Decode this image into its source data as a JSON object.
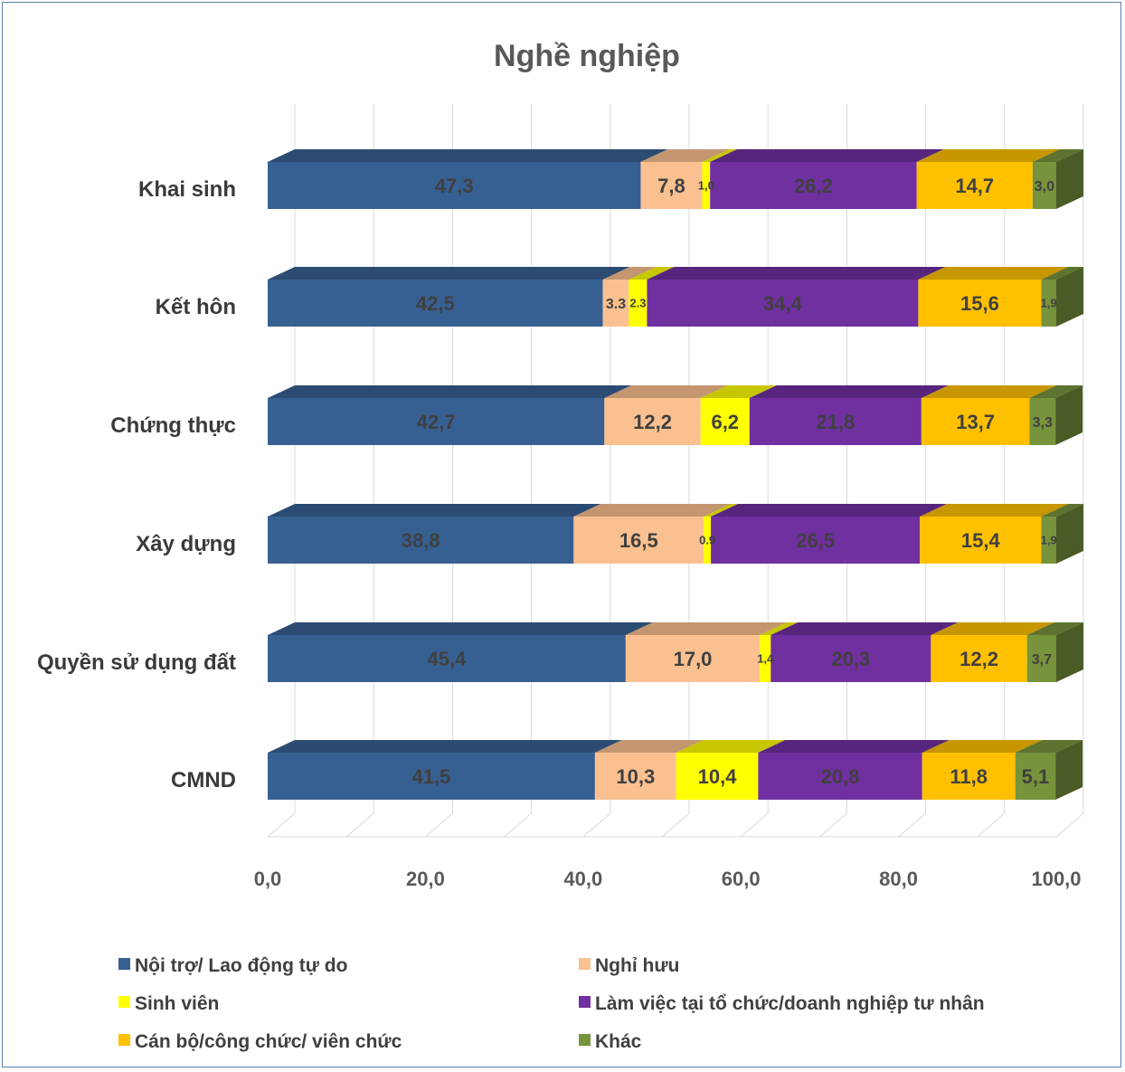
{
  "chart_data": {
    "type": "bar",
    "orientation": "horizontal",
    "stacked": true,
    "title": "Nghề nghiệp",
    "categories": [
      "Khai sinh",
      "Kết hôn",
      "Chứng thực",
      "Xây dựng",
      "Quyền sử dụng đất",
      "CMND"
    ],
    "series": [
      {
        "name": "Nội trợ/ Lao động tự do",
        "color": "#376092",
        "values": [
          47.3,
          42.5,
          42.7,
          38.8,
          45.4,
          41.5
        ],
        "labels": [
          "47,3",
          "42,5",
          "42,7",
          "38,8",
          "45,4",
          "41,5"
        ]
      },
      {
        "name": "Nghỉ hưu",
        "color": "#fac090",
        "values": [
          7.8,
          3.3,
          12.2,
          16.5,
          17.0,
          10.3
        ],
        "labels": [
          "7,8",
          "3.3",
          "12,2",
          "16,5",
          "17,0",
          "10,3"
        ]
      },
      {
        "name": "Sinh viên",
        "color": "#ffff00",
        "values": [
          1.0,
          2.3,
          6.2,
          0.9,
          1.4,
          10.4
        ],
        "labels": [
          "1,0",
          "2.3",
          "6,2",
          "0.9",
          "1,4",
          "10,4"
        ]
      },
      {
        "name": "Làm việc tại tổ chức/doanh nghiệp tư nhân",
        "color": "#7030a0",
        "values": [
          26.2,
          34.4,
          21.8,
          26.5,
          20.3,
          20.8
        ],
        "labels": [
          "26,2",
          "34,4",
          "21,8",
          "26,5",
          "20,3",
          "20,8"
        ]
      },
      {
        "name": "Cán bộ/công chức/ viên chức",
        "color": "#ffc000",
        "values": [
          14.7,
          15.6,
          13.7,
          15.4,
          12.2,
          11.8
        ],
        "labels": [
          "14,7",
          "15,6",
          "13,7",
          "15,4",
          "12,2",
          "11,8"
        ]
      },
      {
        "name": "Khác",
        "color": "#77933c",
        "values": [
          3.0,
          1.9,
          3.3,
          1.9,
          3.7,
          5.1
        ],
        "labels": [
          "3,0",
          "1,9",
          "3,3",
          "1,9",
          "3,7",
          "5,1"
        ]
      }
    ],
    "xlim": [
      0,
      100
    ],
    "x_ticks": [
      "0,0",
      "20,0",
      "40,0",
      "60,0",
      "80,0",
      "100,0"
    ],
    "grid": true,
    "legend": "bottom"
  }
}
